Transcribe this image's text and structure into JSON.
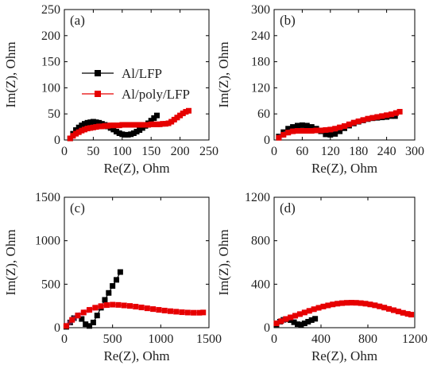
{
  "chart_data": [
    {
      "type": "scatter",
      "panel_label": "(a)",
      "xlabel": "Re(Z), Ohm",
      "ylabel": "Im(Z), Ohm",
      "xlim": [
        0,
        250
      ],
      "ylim": [
        0,
        250
      ],
      "xticks": [
        0,
        50,
        100,
        150,
        200,
        250
      ],
      "yticks": [
        0,
        50,
        100,
        150,
        200,
        250
      ],
      "legend": {
        "placement": "left-middle",
        "entries": [
          {
            "label": "Al/LFP",
            "color": "#000000"
          },
          {
            "label": "Al/poly/LFP",
            "color": "#e60000"
          }
        ]
      },
      "series": [
        {
          "name": "Al/LFP",
          "color": "#000000",
          "x": [
            10,
            15,
            20,
            25,
            30,
            35,
            40,
            45,
            50,
            55,
            60,
            65,
            70,
            75,
            80,
            85,
            90,
            95,
            100,
            105,
            110,
            115,
            120,
            125,
            130,
            135,
            140,
            145,
            150,
            155,
            160
          ],
          "y": [
            3,
            12,
            19,
            24,
            28,
            31,
            33,
            34,
            35,
            34,
            33,
            31,
            29,
            26,
            23,
            20,
            16,
            13,
            11,
            10,
            10,
            11,
            13,
            16,
            19,
            23,
            27,
            32,
            37,
            42,
            47
          ]
        },
        {
          "name": "Al/poly/LFP",
          "color": "#e60000",
          "x": [
            10,
            15,
            20,
            25,
            30,
            35,
            40,
            45,
            50,
            55,
            60,
            65,
            70,
            75,
            80,
            85,
            90,
            95,
            100,
            105,
            110,
            115,
            120,
            125,
            130,
            135,
            140,
            145,
            150,
            155,
            160,
            165,
            170,
            175,
            180,
            185,
            190,
            195,
            200,
            205,
            210,
            215
          ],
          "y": [
            3,
            8,
            12,
            15,
            18,
            20,
            22,
            23,
            24,
            25,
            26,
            26,
            27,
            27,
            28,
            28,
            28,
            28,
            29,
            29,
            29,
            29,
            29,
            29,
            29,
            29,
            29,
            29,
            30,
            30,
            30,
            30,
            31,
            31,
            32,
            35,
            39,
            43,
            47,
            51,
            54,
            56
          ]
        }
      ]
    },
    {
      "type": "scatter",
      "panel_label": "(b)",
      "xlabel": "Re(Z), Ohm",
      "ylabel": "Im(Z), Ohm",
      "xlim": [
        0,
        300
      ],
      "ylim": [
        0,
        300
      ],
      "xticks": [
        0,
        60,
        120,
        180,
        240,
        300
      ],
      "yticks": [
        0,
        60,
        120,
        180,
        240,
        300
      ],
      "series": [
        {
          "name": "Al/LFP",
          "color": "#000000",
          "x": [
            10,
            20,
            30,
            40,
            50,
            60,
            70,
            80,
            90,
            100,
            110,
            120,
            130,
            140,
            150,
            160,
            170,
            180,
            190,
            200,
            210,
            220,
            230,
            240,
            250,
            258
          ],
          "y": [
            8,
            18,
            26,
            30,
            33,
            34,
            33,
            30,
            26,
            20,
            13,
            12,
            14,
            20,
            27,
            33,
            38,
            42,
            45,
            48,
            50,
            51,
            52,
            53,
            55,
            55
          ]
        },
        {
          "name": "Al/poly/LFP",
          "color": "#e60000",
          "x": [
            10,
            20,
            30,
            40,
            50,
            60,
            70,
            80,
            90,
            100,
            110,
            120,
            130,
            140,
            150,
            160,
            170,
            180,
            190,
            200,
            210,
            220,
            230,
            240,
            250,
            260,
            268
          ],
          "y": [
            5,
            12,
            17,
            20,
            21,
            21,
            21,
            21,
            22,
            22,
            23,
            24,
            26,
            29,
            32,
            36,
            40,
            43,
            46,
            49,
            51,
            53,
            55,
            57,
            59,
            62,
            65
          ]
        }
      ]
    },
    {
      "type": "scatter",
      "panel_label": "(c)",
      "xlabel": "Re(Z), Ohm",
      "ylabel": "Im(Z), Ohm",
      "xlim": [
        0,
        1500
      ],
      "ylim": [
        0,
        1500
      ],
      "xticks": [
        0,
        500,
        1000,
        1500
      ],
      "yticks": [
        0,
        500,
        1000,
        1500
      ],
      "series": [
        {
          "name": "Al/LFP",
          "color": "#000000",
          "x": [
            20,
            60,
            100,
            140,
            180,
            220,
            260,
            300,
            340,
            380,
            420,
            460,
            500,
            540,
            580
          ],
          "y": [
            10,
            60,
            110,
            140,
            100,
            40,
            20,
            60,
            140,
            230,
            320,
            400,
            480,
            550,
            640
          ]
        },
        {
          "name": "Al/poly/LFP",
          "color": "#e60000",
          "x": [
            20,
            80,
            140,
            200,
            260,
            320,
            380,
            440,
            500,
            560,
            620,
            680,
            740,
            800,
            860,
            920,
            980,
            1040,
            1100,
            1160,
            1220,
            1280,
            1340,
            1400,
            1440
          ],
          "y": [
            20,
            90,
            140,
            175,
            205,
            230,
            248,
            260,
            265,
            262,
            256,
            250,
            242,
            233,
            223,
            214,
            205,
            197,
            190,
            184,
            178,
            174,
            172,
            172,
            175
          ]
        }
      ]
    },
    {
      "type": "scatter",
      "panel_label": "(d)",
      "xlabel": "Re(Z), Ohm",
      "ylabel": "Im(Z), Ohm",
      "xlim": [
        0,
        1200
      ],
      "ylim": [
        0,
        1200
      ],
      "xticks": [
        0,
        400,
        800,
        1200
      ],
      "yticks": [
        0,
        400,
        800,
        1200
      ],
      "series": [
        {
          "name": "Al/LFP",
          "color": "#000000",
          "x": [
            20,
            50,
            80,
            110,
            140,
            170,
            200,
            230,
            260,
            290,
            320,
            350
          ],
          "y": [
            30,
            55,
            72,
            78,
            70,
            50,
            32,
            28,
            40,
            55,
            70,
            82
          ]
        },
        {
          "name": "Al/poly/LFP",
          "color": "#e60000",
          "x": [
            20,
            60,
            100,
            140,
            180,
            220,
            260,
            300,
            340,
            380,
            420,
            460,
            500,
            540,
            580,
            620,
            660,
            700,
            740,
            780,
            820,
            860,
            900,
            940,
            980,
            1020,
            1060,
            1100,
            1140,
            1170
          ],
          "y": [
            40,
            60,
            80,
            95,
            110,
            125,
            140,
            155,
            170,
            183,
            195,
            205,
            214,
            221,
            226,
            229,
            230,
            229,
            226,
            221,
            214,
            206,
            196,
            185,
            173,
            161,
            149,
            137,
            127,
            120
          ]
        }
      ]
    }
  ]
}
